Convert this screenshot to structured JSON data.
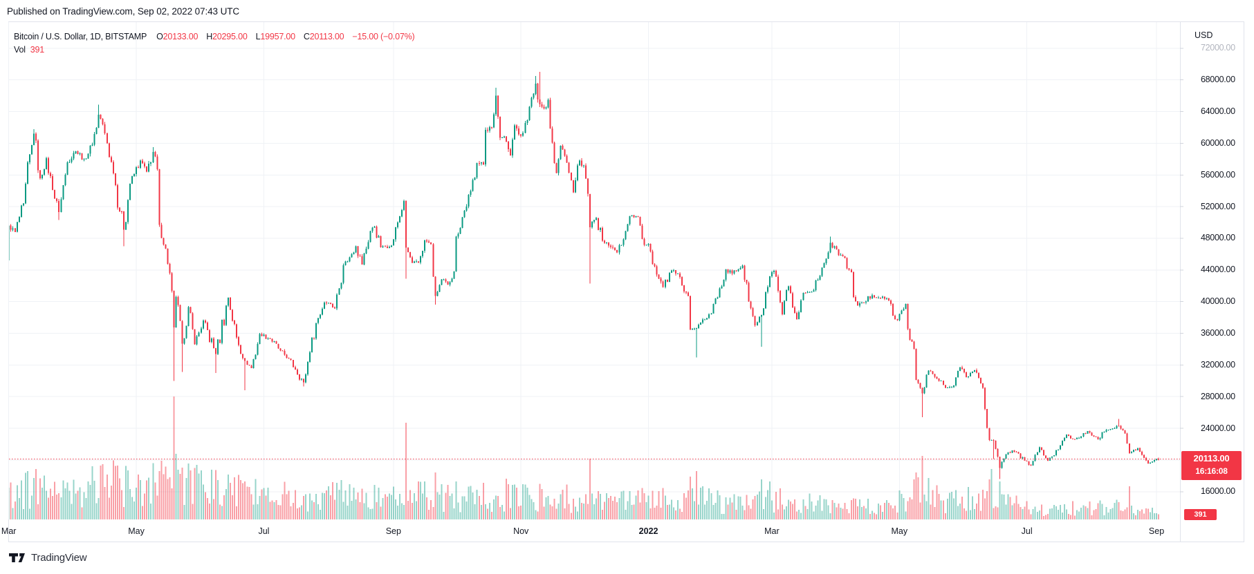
{
  "published_bar": {
    "text": "Published on TradingView.com, Sep 02, 2022 07:43 UTC"
  },
  "header": {
    "symbol": "Bitcoin / U.S. Dollar, 1D, BITSTAMP",
    "ohlc": [
      {
        "label": "O",
        "value": "20133.00"
      },
      {
        "label": "H",
        "value": "20295.00"
      },
      {
        "label": "L",
        "value": "19957.00"
      },
      {
        "label": "C",
        "value": "20113.00"
      }
    ],
    "change": "−15.00 (−0.07%)",
    "vol_label": "Vol",
    "vol_value": "391"
  },
  "price_axis": {
    "currency": "USD",
    "ticks": [
      {
        "label": "72000.00",
        "value": 72000,
        "faded": true
      },
      {
        "label": "68000.00",
        "value": 68000
      },
      {
        "label": "64000.00",
        "value": 64000
      },
      {
        "label": "60000.00",
        "value": 60000
      },
      {
        "label": "56000.00",
        "value": 56000
      },
      {
        "label": "52000.00",
        "value": 52000
      },
      {
        "label": "48000.00",
        "value": 48000
      },
      {
        "label": "44000.00",
        "value": 44000
      },
      {
        "label": "40000.00",
        "value": 40000
      },
      {
        "label": "36000.00",
        "value": 36000
      },
      {
        "label": "32000.00",
        "value": 32000
      },
      {
        "label": "28000.00",
        "value": 28000
      },
      {
        "label": "24000.00",
        "value": 24000
      },
      {
        "label": "16000.00",
        "value": 16000
      }
    ],
    "price_label": {
      "price": "20113.00",
      "countdown": "16:16:08"
    },
    "volume_badge": "391"
  },
  "time_axis": {
    "ticks": [
      {
        "label": "Mar",
        "day": 0
      },
      {
        "label": "May",
        "day": 61
      },
      {
        "label": "Jul",
        "day": 122
      },
      {
        "label": "Sep",
        "day": 184
      },
      {
        "label": "Nov",
        "day": 245
      },
      {
        "label": "2022",
        "day": 306,
        "bold": true
      },
      {
        "label": "Mar",
        "day": 365
      },
      {
        "label": "May",
        "day": 426
      },
      {
        "label": "Jul",
        "day": 487
      },
      {
        "label": "Sep",
        "day": 549
      }
    ]
  },
  "footer": {
    "logo_text": "TradingView"
  },
  "colors": {
    "up": "#089981",
    "down": "#f23645",
    "vol_up": "rgba(8,153,129,0.42)",
    "vol_down": "rgba(242,54,69,0.48)",
    "grid": "#eff2f6",
    "border": "#e0e3eb",
    "tick": "#d1d4dc",
    "price_line": "#f23645",
    "label_bg": "#f23645"
  },
  "chart_data": {
    "type": "candlestick",
    "title": "Bitcoin / U.S. Dollar, 1D, BITSTAMP",
    "interval": "1D",
    "day0_date": "2021-03-01",
    "last_date": "2022-09-02",
    "ylim": [
      14800,
      73800
    ],
    "grid_prices": [
      16000,
      20000,
      24000,
      28000,
      32000,
      36000,
      40000,
      44000,
      48000,
      52000,
      56000,
      60000,
      64000,
      68000,
      72000
    ],
    "current_price": 20113,
    "last_candle": {
      "open": 20133,
      "high": 20295,
      "low": 19957,
      "close": 20113,
      "change": -15.0,
      "change_pct": -0.07,
      "volume": 391
    },
    "close_waypoints": [
      [
        -2,
        46300
      ],
      [
        -1,
        45200
      ],
      [
        0,
        49600
      ],
      [
        3,
        48800
      ],
      [
        7,
        52400
      ],
      [
        12,
        61200
      ],
      [
        15,
        55600
      ],
      [
        18,
        58100
      ],
      [
        21,
        54100
      ],
      [
        24,
        51300
      ],
      [
        28,
        57600
      ],
      [
        32,
        59000
      ],
      [
        36,
        58000
      ],
      [
        40,
        59800
      ],
      [
        43,
        63600
      ],
      [
        44,
        63100
      ],
      [
        47,
        60000
      ],
      [
        50,
        56200
      ],
      [
        55,
        49100
      ],
      [
        58,
        54900
      ],
      [
        63,
        57800
      ],
      [
        66,
        56400
      ],
      [
        69,
        58900
      ],
      [
        71,
        56700
      ],
      [
        72,
        49700
      ],
      [
        75,
        46700
      ],
      [
        77,
        43600
      ],
      [
        79,
        36750
      ],
      [
        80,
        40600
      ],
      [
        83,
        34700
      ],
      [
        86,
        39300
      ],
      [
        89,
        34600
      ],
      [
        93,
        37600
      ],
      [
        99,
        33400
      ],
      [
        105,
        40500
      ],
      [
        109,
        35500
      ],
      [
        113,
        32500
      ],
      [
        116,
        31600
      ],
      [
        120,
        35900
      ],
      [
        125,
        35300
      ],
      [
        130,
        33800
      ],
      [
        134,
        32800
      ],
      [
        137,
        31400
      ],
      [
        141,
        29800
      ],
      [
        144,
        33600
      ],
      [
        147,
        37300
      ],
      [
        151,
        39900
      ],
      [
        153,
        39850
      ],
      [
        156,
        39150
      ],
      [
        160,
        44600
      ],
      [
        163,
        45600
      ],
      [
        166,
        47000
      ],
      [
        169,
        44700
      ],
      [
        173,
        48900
      ],
      [
        175,
        49500
      ],
      [
        178,
        46850
      ],
      [
        183,
        47100
      ],
      [
        186,
        50000
      ],
      [
        189,
        52700
      ],
      [
        190,
        46800
      ],
      [
        193,
        44900
      ],
      [
        196,
        44950
      ],
      [
        199,
        47750
      ],
      [
        202,
        47250
      ],
      [
        204,
        40700
      ],
      [
        207,
        42800
      ],
      [
        210,
        42150
      ],
      [
        213,
        43800
      ],
      [
        214,
        48200
      ],
      [
        218,
        51500
      ],
      [
        221,
        53950
      ],
      [
        224,
        57500
      ],
      [
        227,
        57350
      ],
      [
        228,
        61700
      ],
      [
        231,
        62000
      ],
      [
        233,
        66000
      ],
      [
        235,
        60700
      ],
      [
        237,
        60850
      ],
      [
        240,
        58450
      ],
      [
        242,
        62250
      ],
      [
        245,
        60950
      ],
      [
        248,
        62900
      ],
      [
        252,
        67550
      ],
      [
        254,
        64900
      ],
      [
        256,
        64400
      ],
      [
        258,
        65500
      ],
      [
        260,
        60100
      ],
      [
        262,
        56250
      ],
      [
        264,
        59700
      ],
      [
        267,
        57550
      ],
      [
        270,
        53800
      ],
      [
        273,
        57800
      ],
      [
        275,
        57200
      ],
      [
        277,
        53600
      ],
      [
        278,
        49400
      ],
      [
        281,
        50550
      ],
      [
        284,
        47700
      ],
      [
        288,
        46900
      ],
      [
        291,
        46200
      ],
      [
        295,
        48900
      ],
      [
        297,
        50800
      ],
      [
        301,
        50700
      ],
      [
        304,
        47150
      ],
      [
        306,
        47300
      ],
      [
        310,
        43400
      ],
      [
        313,
        41850
      ],
      [
        317,
        43950
      ],
      [
        321,
        43100
      ],
      [
        325,
        40700
      ],
      [
        326,
        36450
      ],
      [
        329,
        36650
      ],
      [
        333,
        37750
      ],
      [
        336,
        38500
      ],
      [
        340,
        41650
      ],
      [
        343,
        44050
      ],
      [
        346,
        43550
      ],
      [
        351,
        44550
      ],
      [
        354,
        40000
      ],
      [
        357,
        37000
      ],
      [
        360,
        38300
      ],
      [
        364,
        43200
      ],
      [
        366,
        43900
      ],
      [
        370,
        38400
      ],
      [
        373,
        41950
      ],
      [
        377,
        37800
      ],
      [
        380,
        41100
      ],
      [
        384,
        41250
      ],
      [
        389,
        44300
      ],
      [
        393,
        47450
      ],
      [
        397,
        45850
      ],
      [
        400,
        45500
      ],
      [
        406,
        39500
      ],
      [
        409,
        39900
      ],
      [
        413,
        40800
      ],
      [
        416,
        40500
      ],
      [
        420,
        40400
      ],
      [
        425,
        37650
      ],
      [
        429,
        39700
      ],
      [
        430,
        36550
      ],
      [
        433,
        34050
      ],
      [
        434,
        30100
      ],
      [
        436,
        29100
      ],
      [
        437,
        28400
      ],
      [
        440,
        31300
      ],
      [
        444,
        30300
      ],
      [
        448,
        29100
      ],
      [
        451,
        29200
      ],
      [
        455,
        31700
      ],
      [
        458,
        30450
      ],
      [
        462,
        31350
      ],
      [
        466,
        29100
      ],
      [
        469,
        22500
      ],
      [
        471,
        22450
      ],
      [
        474,
        19000
      ],
      [
        477,
        20700
      ],
      [
        480,
        21200
      ],
      [
        482,
        21000
      ],
      [
        486,
        19900
      ],
      [
        489,
        19300
      ],
      [
        493,
        21600
      ],
      [
        497,
        19900
      ],
      [
        500,
        20600
      ],
      [
        504,
        22450
      ],
      [
        506,
        23200
      ],
      [
        510,
        22600
      ],
      [
        513,
        22950
      ],
      [
        516,
        23650
      ],
      [
        519,
        22950
      ],
      [
        521,
        22600
      ],
      [
        525,
        23800
      ],
      [
        528,
        23950
      ],
      [
        531,
        24300
      ],
      [
        534,
        23350
      ],
      [
        536,
        20850
      ],
      [
        540,
        21500
      ],
      [
        543,
        20250
      ],
      [
        545,
        19550
      ],
      [
        547,
        19800
      ],
      [
        549,
        20133
      ],
      [
        550,
        20113
      ]
    ],
    "wick_lows": [
      [
        -1,
        43000
      ],
      [
        24,
        50300
      ],
      [
        55,
        47000
      ],
      [
        79,
        30000
      ],
      [
        83,
        31100
      ],
      [
        99,
        31000
      ],
      [
        113,
        28800
      ],
      [
        141,
        29300
      ],
      [
        190,
        42900
      ],
      [
        204,
        39600
      ],
      [
        278,
        42300
      ],
      [
        329,
        32950
      ],
      [
        360,
        34300
      ],
      [
        437,
        25400
      ],
      [
        471,
        20100
      ],
      [
        474,
        17600
      ],
      [
        550,
        19957
      ]
    ],
    "wick_highs": [
      [
        12,
        61800
      ],
      [
        43,
        64895
      ],
      [
        69,
        59500
      ],
      [
        189,
        52900
      ],
      [
        228,
        62000
      ],
      [
        233,
        67000
      ],
      [
        252,
        68500
      ],
      [
        254,
        69000
      ],
      [
        393,
        48200
      ],
      [
        531,
        25200
      ],
      [
        550,
        20295
      ]
    ],
    "volume_envelope": [
      [
        -2,
        40
      ],
      [
        10,
        48
      ],
      [
        30,
        42
      ],
      [
        50,
        55
      ],
      [
        70,
        60
      ],
      [
        85,
        70
      ],
      [
        100,
        45
      ],
      [
        120,
        38
      ],
      [
        140,
        32
      ],
      [
        160,
        38
      ],
      [
        180,
        32
      ],
      [
        200,
        35
      ],
      [
        215,
        30
      ],
      [
        235,
        38
      ],
      [
        255,
        35
      ],
      [
        275,
        30
      ],
      [
        290,
        26
      ],
      [
        310,
        30
      ],
      [
        330,
        32
      ],
      [
        350,
        22
      ],
      [
        365,
        30
      ],
      [
        380,
        24
      ],
      [
        400,
        20
      ],
      [
        420,
        18
      ],
      [
        435,
        40
      ],
      [
        450,
        25
      ],
      [
        470,
        35
      ],
      [
        490,
        15
      ],
      [
        510,
        18
      ],
      [
        530,
        20
      ],
      [
        545,
        12
      ],
      [
        550,
        10
      ]
    ],
    "volume_spikes": [
      [
        12,
        60,
        "g"
      ],
      [
        44,
        78,
        "r"
      ],
      [
        47,
        65,
        "r"
      ],
      [
        72,
        70,
        "r"
      ],
      [
        73,
        85,
        "r"
      ],
      [
        79,
        178,
        "r"
      ],
      [
        80,
        95,
        "g"
      ],
      [
        81,
        72,
        "g"
      ],
      [
        83,
        75,
        "r"
      ],
      [
        85,
        60,
        "g"
      ],
      [
        105,
        65,
        "g"
      ],
      [
        113,
        55,
        "r"
      ],
      [
        190,
        140,
        "r"
      ],
      [
        204,
        68,
        "r"
      ],
      [
        214,
        55,
        "g"
      ],
      [
        278,
        88,
        "r"
      ],
      [
        326,
        62,
        "r"
      ],
      [
        329,
        70,
        "r"
      ],
      [
        360,
        58,
        "g"
      ],
      [
        364,
        55,
        "g"
      ],
      [
        434,
        68,
        "r"
      ],
      [
        437,
        92,
        "r"
      ],
      [
        440,
        60,
        "g"
      ],
      [
        469,
        58,
        "r"
      ],
      [
        470,
        73,
        "g"
      ],
      [
        474,
        55,
        "g"
      ],
      [
        536,
        48,
        "r"
      ]
    ]
  }
}
